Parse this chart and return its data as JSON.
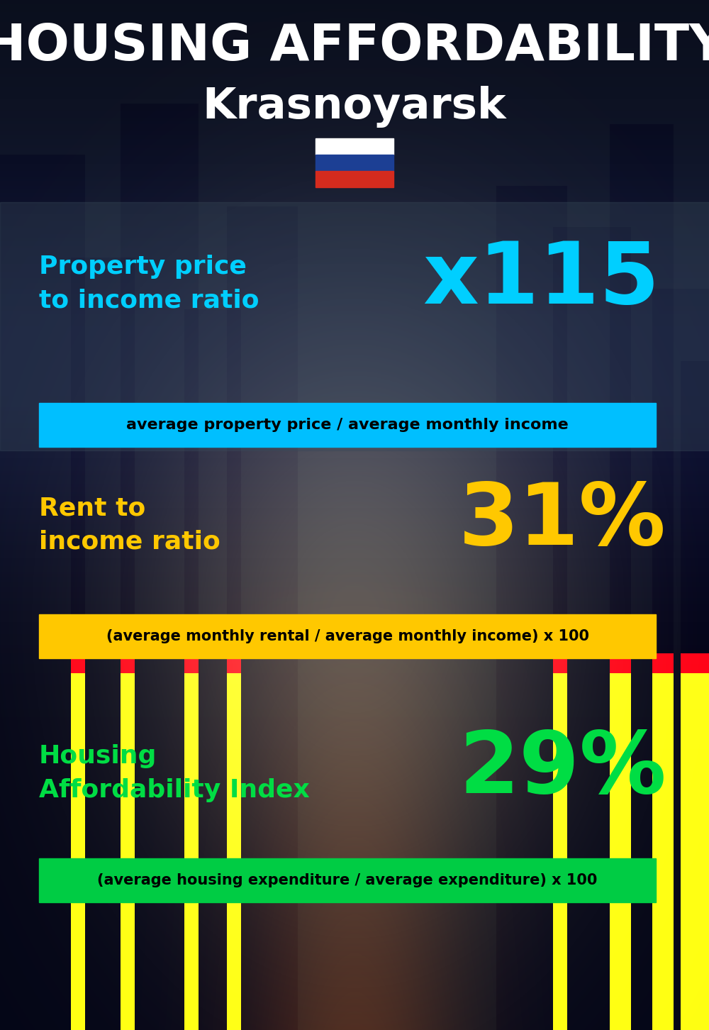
{
  "title_line1": "HOUSING AFFORDABILITY",
  "title_line2": "Krasnoyarsk",
  "bg_color": "#0a0f1a",
  "section1_label": "Property price\nto income ratio",
  "section1_value": "x115",
  "section1_label_color": "#00cfff",
  "section1_value_color": "#00cfff",
  "section1_formula": "average property price / average monthly income",
  "section1_formula_bg": "#00bfff",
  "section2_label": "Rent to\nincome ratio",
  "section2_value": "31%",
  "section2_label_color": "#ffc800",
  "section2_value_color": "#ffc800",
  "section2_formula": "(average monthly rental / average monthly income) x 100",
  "section2_formula_bg": "#ffc800",
  "section3_label": "Housing\nAffordability Index",
  "section3_value": "29%",
  "section3_label_color": "#00dd44",
  "section3_value_color": "#00dd44",
  "section3_formula": "(average housing expenditure / average expenditure) x 100",
  "section3_formula_bg": "#00cc44",
  "title_color": "#ffffff",
  "subtitle_color": "#ffffff",
  "flag_white": "#ffffff",
  "flag_blue": "#1c3f94",
  "flag_red": "#d52b1e",
  "figwidth": 10.0,
  "figheight": 14.52,
  "dpi": 100
}
